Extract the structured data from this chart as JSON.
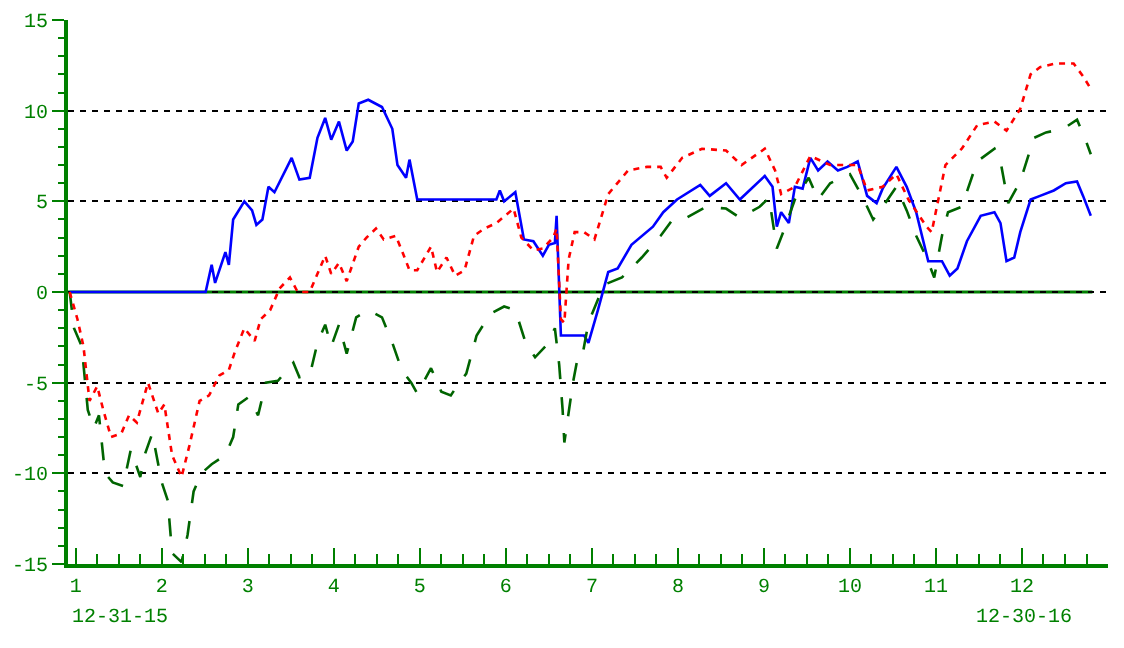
{
  "chart_data": {
    "type": "line",
    "xlim": [
      0.91,
      13.0
    ],
    "xticks": [
      1,
      2,
      3,
      4,
      5,
      6,
      7,
      8,
      9,
      10,
      11,
      12
    ],
    "ylim": [
      -15,
      15
    ],
    "yticks": [
      -15,
      -10,
      -5,
      0,
      5,
      10,
      15
    ],
    "grid": "y",
    "annotations": [
      "12-31-15",
      "12-30-16"
    ],
    "ref_lines": [
      {
        "axis": "y",
        "value": 0,
        "color": "#008000",
        "line_style": "solid"
      }
    ],
    "series": [
      {
        "color": "#0000ff",
        "line_style": "solid",
        "x": [
          0.93,
          2.51,
          2.58,
          2.62,
          2.74,
          2.78,
          2.83,
          2.96,
          3.05,
          3.1,
          3.17,
          3.24,
          3.31,
          3.51,
          3.6,
          3.72,
          3.81,
          3.9,
          3.97,
          4.06,
          4.15,
          4.22,
          4.29,
          4.4,
          4.56,
          4.68,
          4.74,
          4.84,
          4.88,
          4.97,
          5.89,
          5.93,
          5.98,
          6.11,
          6.21,
          6.32,
          6.43,
          6.5,
          6.57,
          6.59,
          6.64,
          6.91,
          6.96,
          7.07,
          7.19,
          7.3,
          7.46,
          7.71,
          7.83,
          7.99,
          8.26,
          8.37,
          8.56,
          8.72,
          9.01,
          9.1,
          9.15,
          9.2,
          9.29,
          9.36,
          9.45,
          9.54,
          9.63,
          9.74,
          9.86,
          9.97,
          10.09,
          10.2,
          10.31,
          10.38,
          10.54,
          10.66,
          10.77,
          10.91,
          11.07,
          11.16,
          11.25,
          11.36,
          11.52,
          11.68,
          11.75,
          11.82,
          11.91,
          11.98,
          12.1,
          12.21,
          12.37,
          12.51,
          12.64,
          12.71,
          12.8
        ],
        "values": [
          0,
          0,
          1.5,
          0.5,
          2.2,
          1.5,
          4.0,
          5.0,
          4.5,
          3.7,
          4.0,
          5.8,
          5.5,
          7.4,
          6.2,
          6.3,
          8.5,
          9.6,
          8.4,
          9.4,
          7.8,
          8.3,
          10.4,
          10.6,
          10.2,
          9.0,
          7.0,
          6.3,
          7.3,
          5.1,
          5.1,
          5.6,
          5.0,
          5.5,
          2.9,
          2.8,
          2.0,
          2.6,
          2.7,
          4.2,
          -2.4,
          -2.4,
          -2.8,
          -1.0,
          1.1,
          1.3,
          2.6,
          3.6,
          4.4,
          5.1,
          5.9,
          5.3,
          6.0,
          5.1,
          6.4,
          5.8,
          3.6,
          4.4,
          3.8,
          5.8,
          5.7,
          7.4,
          6.7,
          7.2,
          6.7,
          6.9,
          7.2,
          5.3,
          4.9,
          5.7,
          6.9,
          5.8,
          4.4,
          1.7,
          1.7,
          0.9,
          1.3,
          2.8,
          4.2,
          4.4,
          3.8,
          1.7,
          1.9,
          3.3,
          5.1,
          5.3,
          5.6,
          6.0,
          6.1,
          5.3,
          4.2
        ]
      },
      {
        "color": "#006400",
        "line_style": "dashed",
        "x": [
          0.93,
          0.98,
          1.07,
          1.14,
          1.21,
          1.27,
          1.34,
          1.43,
          1.55,
          1.64,
          1.75,
          1.8,
          1.89,
          2.0,
          2.07,
          2.12,
          2.23,
          2.3,
          2.37,
          2.46,
          2.58,
          2.74,
          2.83,
          2.89,
          3.01,
          3.12,
          3.21,
          3.35,
          3.53,
          3.6,
          3.72,
          3.81,
          3.9,
          3.97,
          4.06,
          4.15,
          4.26,
          4.4,
          4.56,
          4.68,
          4.79,
          4.9,
          4.97,
          5.13,
          5.25,
          5.36,
          5.43,
          5.54,
          5.66,
          5.82,
          5.98,
          6.11,
          6.23,
          6.34,
          6.46,
          6.57,
          6.62,
          6.66,
          6.68,
          6.78,
          6.84,
          6.89,
          6.96,
          7.14,
          7.35,
          7.58,
          7.8,
          7.94,
          8.1,
          8.33,
          8.56,
          8.72,
          8.95,
          9.06,
          9.15,
          9.24,
          9.36,
          9.52,
          9.63,
          9.77,
          10.0,
          10.15,
          10.27,
          10.38,
          10.54,
          10.66,
          10.77,
          10.89,
          10.98,
          11.07,
          11.14,
          11.3,
          11.48,
          11.68,
          11.75,
          11.84,
          11.98,
          12.14,
          12.28,
          12.48,
          12.64,
          12.73,
          12.8
        ],
        "values": [
          0,
          -2.0,
          -3.0,
          -6.5,
          -7.5,
          -6.8,
          -10.0,
          -10.5,
          -10.7,
          -8.7,
          -10.2,
          -9.0,
          -7.8,
          -10.5,
          -11.5,
          -14.4,
          -14.9,
          -13.4,
          -11.0,
          -10.0,
          -9.5,
          -9.0,
          -8.0,
          -6.2,
          -5.8,
          -6.8,
          -5.0,
          -4.9,
          -3.9,
          -4.7,
          -4.6,
          -2.8,
          -1.8,
          -3.0,
          -1.8,
          -3.4,
          -1.4,
          -1.0,
          -1.4,
          -2.8,
          -4.3,
          -5.0,
          -5.6,
          -4.2,
          -5.5,
          -5.7,
          -5.2,
          -4.5,
          -2.4,
          -1.2,
          -0.8,
          -1.0,
          -2.8,
          -3.6,
          -3.0,
          -2.0,
          -4.0,
          -6.5,
          -8.3,
          -5.0,
          -3.5,
          -3.5,
          -1.7,
          0.4,
          0.8,
          1.9,
          3.1,
          4.0,
          4.1,
          4.7,
          4.6,
          4.1,
          4.7,
          5.2,
          2.4,
          3.5,
          5.1,
          6.3,
          5.1,
          6.0,
          6.5,
          5.2,
          4.0,
          4.7,
          5.8,
          4.5,
          3.1,
          1.9,
          0.8,
          3.1,
          4.4,
          4.7,
          7.2,
          7.9,
          7.2,
          4.9,
          6.1,
          8.5,
          8.8,
          9.0,
          9.5,
          8.5,
          7.6
        ]
      },
      {
        "color": "#ff0000",
        "line_style": "dotted",
        "x": [
          0.93,
          1.02,
          1.09,
          1.16,
          1.25,
          1.32,
          1.41,
          1.53,
          1.62,
          1.71,
          1.84,
          1.96,
          2.03,
          2.12,
          2.23,
          2.32,
          2.44,
          2.55,
          2.67,
          2.78,
          2.85,
          2.96,
          3.08,
          3.15,
          3.26,
          3.37,
          3.49,
          3.58,
          3.72,
          3.81,
          3.9,
          3.97,
          4.06,
          4.15,
          4.29,
          4.38,
          4.49,
          4.58,
          4.72,
          4.79,
          4.88,
          4.97,
          5.13,
          5.2,
          5.31,
          5.41,
          5.52,
          5.63,
          5.75,
          5.89,
          6.09,
          6.18,
          6.32,
          6.43,
          6.55,
          6.59,
          6.64,
          6.68,
          6.73,
          6.8,
          6.91,
          7.03,
          7.19,
          7.42,
          7.64,
          7.8,
          7.87,
          8.05,
          8.28,
          8.56,
          8.74,
          9.01,
          9.13,
          9.2,
          9.36,
          9.54,
          9.77,
          10.09,
          10.2,
          10.38,
          10.54,
          10.68,
          10.89,
          10.95,
          11.11,
          11.3,
          11.48,
          11.68,
          11.82,
          11.98,
          12.1,
          12.21,
          12.39,
          12.6,
          12.71,
          12.8
        ],
        "values": [
          0,
          -1.5,
          -3.0,
          -6.0,
          -5.2,
          -6.5,
          -8.0,
          -7.8,
          -6.8,
          -7.2,
          -5.0,
          -6.7,
          -6.2,
          -9.0,
          -10.2,
          -8.5,
          -6.0,
          -5.7,
          -4.6,
          -4.3,
          -3.3,
          -2.0,
          -2.7,
          -1.5,
          -1.0,
          0.2,
          0.8,
          0.0,
          0.0,
          1.0,
          2.0,
          1.0,
          1.6,
          0.6,
          2.5,
          3.0,
          3.5,
          2.9,
          3.1,
          2.3,
          1.2,
          1.2,
          2.5,
          1.1,
          1.9,
          0.9,
          1.2,
          3.1,
          3.5,
          3.8,
          4.6,
          3.0,
          2.3,
          2.4,
          3.0,
          3.5,
          -1.5,
          -1.7,
          1.8,
          3.3,
          3.3,
          2.9,
          5.4,
          6.7,
          6.9,
          6.9,
          6.3,
          7.4,
          7.9,
          7.8,
          7.0,
          7.9,
          6.7,
          5.4,
          5.8,
          7.5,
          7.0,
          7.0,
          5.6,
          5.8,
          6.5,
          5.1,
          3.6,
          3.3,
          7.0,
          7.9,
          9.2,
          9.4,
          8.9,
          10.1,
          12.0,
          12.4,
          12.6,
          12.6,
          11.9,
          11.2
        ]
      }
    ]
  }
}
